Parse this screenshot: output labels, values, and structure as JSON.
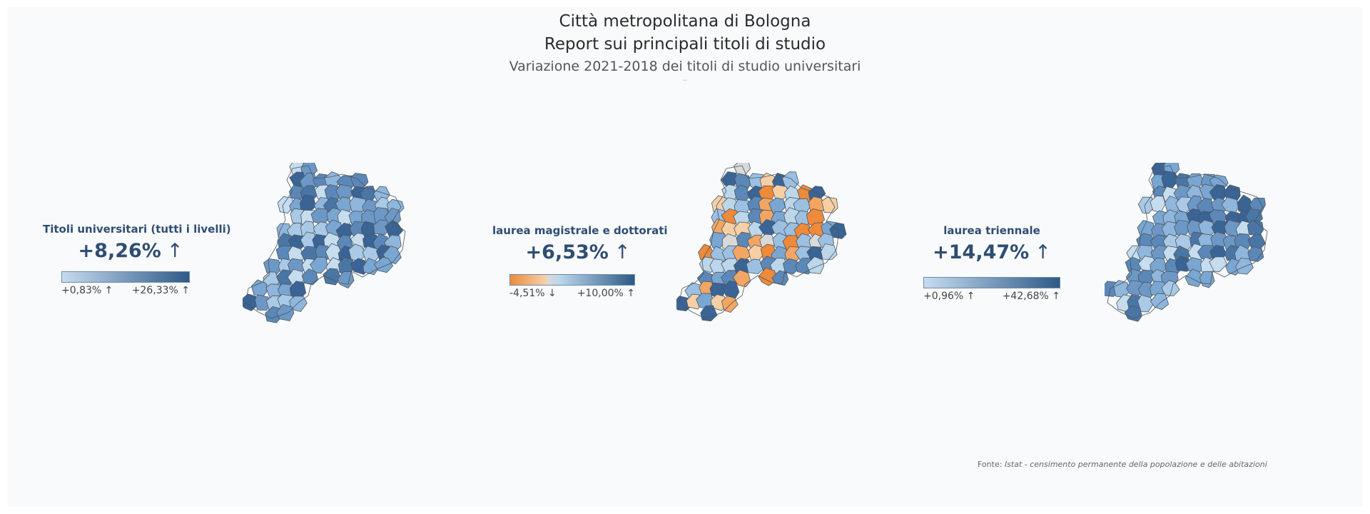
{
  "header": {
    "title_line1": "Città metropolitana di Bologna",
    "title_line2": "Report sui principali titoli di studio",
    "subtitle": "Variazione 2021-2018 dei titoli di studio universitari",
    "dots": ".."
  },
  "panels": [
    {
      "label": "Titoli universitari (tutti i livelli)",
      "value": "+8,26%",
      "trend_icon": "↑",
      "legend_min": "+0,83% ↑",
      "legend_max": "+26,33% ↑",
      "colors": [
        "#c6dcef",
        "#2e5a87"
      ]
    },
    {
      "label": "laurea magistrale e dottorati",
      "value": "+6,53%",
      "trend_icon": "↑",
      "legend_min": "-4,51% ↓",
      "legend_max": "+10,00% ↑",
      "colors": [
        "#ee8a3a",
        "#f6cfa5",
        "#bcd6ea",
        "#2e5a87"
      ]
    },
    {
      "label": "laurea triennale",
      "value": "+14,47%",
      "trend_icon": "↑",
      "legend_min": "+0,96% ↑",
      "legend_max": "+42,68% ↑",
      "colors": [
        "#c6dcef",
        "#2e5a87"
      ]
    }
  ],
  "source": {
    "prefix": "Fonte:",
    "text": "Istat - censimento permanente della popolazione e delle abitazioni"
  }
}
